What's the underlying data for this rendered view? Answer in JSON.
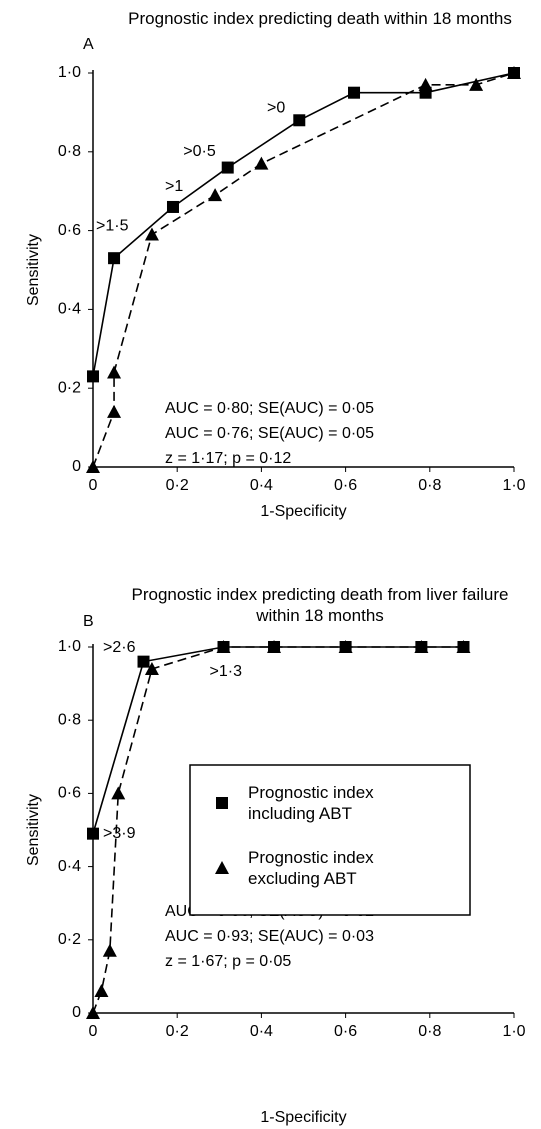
{
  "chart_data": [
    {
      "type": "line",
      "title": "Prognostic index predicting death within 18 months",
      "panel": "A",
      "x_label": "1-Specificity",
      "y_label": "Sensitivity",
      "xlim": [
        0,
        1
      ],
      "ylim": [
        0,
        1
      ],
      "xticks": [
        0,
        {
          "value": 0.2,
          "label": "0·2"
        },
        {
          "value": 0.4,
          "label": "0·4"
        },
        {
          "value": 0.6,
          "label": "0·6"
        },
        {
          "value": 0.8,
          "label": "0·8"
        },
        {
          "value": 1,
          "label": "1·0"
        }
      ],
      "yticks": [
        0,
        {
          "value": 0.2,
          "label": "0·2"
        },
        {
          "value": 0.4,
          "label": "0·4"
        },
        {
          "value": 0.6,
          "label": "0·6"
        },
        {
          "value": 0.8,
          "label": "0·8"
        },
        {
          "value": 1,
          "label": "1·0"
        }
      ],
      "series": [
        {
          "marker": "square",
          "color": "#000000",
          "dashed": false,
          "x": [
            0,
            0.05,
            0.19,
            0.32,
            0.49,
            0.62,
            0.79,
            1.0
          ],
          "values": [
            0.23,
            0.53,
            0.66,
            0.76,
            0.88,
            0.95,
            0.95,
            1.0
          ],
          "point_labels": [
            null,
            ">1·5",
            ">1",
            ">0·5",
            ">0",
            null,
            null,
            null
          ]
        },
        {
          "marker": "triangle",
          "color": "#000000",
          "dashed": true,
          "x": [
            0,
            0.05,
            0.05,
            0.14,
            0.29,
            0.4,
            0.79,
            0.91,
            1.0
          ],
          "values": [
            0,
            0.14,
            0.24,
            0.59,
            0.69,
            0.77,
            0.97,
            0.97,
            1.0
          ]
        }
      ],
      "notes": [
        "AUC = 0·80; SE(AUC) = 0·05",
        "AUC = 0·76; SE(AUC) = 0·05",
        "z = 1·17; p = 0·12"
      ]
    },
    {
      "type": "line",
      "title": "Prognostic index predicting death from liver failure within 18 months",
      "panel": "B",
      "x_label": "1-Specificity",
      "y_label": "Sensitivity",
      "xlim": [
        0,
        1
      ],
      "ylim": [
        0,
        1
      ],
      "xticks": [
        0,
        {
          "value": 0.2,
          "label": "0·2"
        },
        {
          "value": 0.4,
          "label": "0·4"
        },
        {
          "value": 0.6,
          "label": "0·6"
        },
        {
          "value": 0.8,
          "label": "0·8"
        },
        {
          "value": 1,
          "label": "1·0"
        }
      ],
      "yticks": [
        0,
        {
          "value": 0.2,
          "label": "0·2"
        },
        {
          "value": 0.4,
          "label": "0·4"
        },
        {
          "value": 0.6,
          "label": "0·6"
        },
        {
          "value": 0.8,
          "label": "0·8"
        },
        {
          "value": 1,
          "label": "1·0"
        }
      ],
      "legend": "center",
      "series": [
        {
          "name": "Prognostic index including ABT",
          "marker": "square",
          "color": "#000000",
          "dashed": false,
          "x": [
            0,
            0.12,
            0.31,
            0.43,
            0.6,
            0.78,
            0.88
          ],
          "values": [
            0.49,
            0.96,
            1,
            1,
            1,
            1,
            1
          ],
          "point_labels": [
            ">3·9",
            ">2·6",
            null,
            null,
            null,
            null,
            null
          ]
        },
        {
          "name": "Prognostic index excluding ABT",
          "marker": "triangle",
          "color": "#000000",
          "dashed": true,
          "x": [
            0,
            0.02,
            0.04,
            0.06,
            0.14,
            0.31,
            0.43,
            0.6,
            0.78,
            0.88
          ],
          "values": [
            0,
            0.06,
            0.17,
            0.6,
            0.94,
            1,
            1,
            1,
            1,
            1
          ],
          "point_labels": [
            null,
            null,
            null,
            null,
            null,
            ">1·3",
            null,
            null,
            null,
            null
          ]
        }
      ],
      "notes": [
        "AUC = 0·96; SE(AUC) = 0·02",
        "AUC = 0·93; SE(AUC) = 0·03",
        "z = 1·67; p = 0·05"
      ]
    }
  ]
}
